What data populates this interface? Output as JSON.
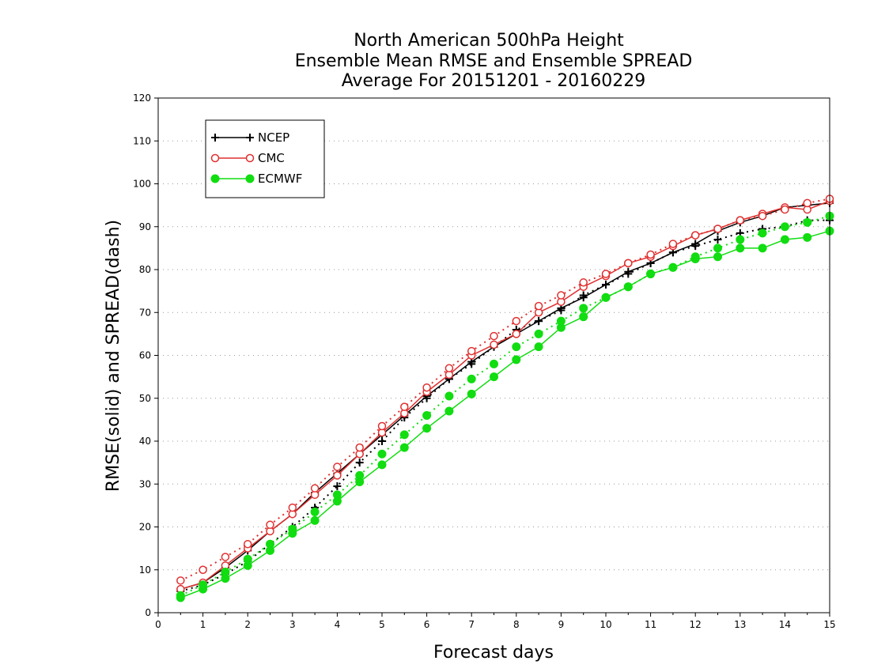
{
  "chart_data": {
    "type": "line",
    "title_lines": [
      "North American 500hPa Height",
      "Ensemble Mean RMSE and Ensemble SPREAD",
      "Average For 20151201 - 20160229"
    ],
    "xlabel": "Forecast days",
    "ylabel": "RMSE(solid) and SPREAD(dash)",
    "xlim": [
      0,
      15
    ],
    "ylim": [
      0,
      120
    ],
    "xticks": [
      0,
      1,
      2,
      3,
      4,
      5,
      6,
      7,
      8,
      9,
      10,
      11,
      12,
      13,
      14,
      15
    ],
    "yticks": [
      0,
      10,
      20,
      30,
      40,
      50,
      60,
      70,
      80,
      90,
      100,
      110,
      120
    ],
    "grid": "horizontal dotted",
    "legend_position": "top-left",
    "x": [
      0.5,
      1,
      1.5,
      2,
      2.5,
      3,
      3.5,
      4,
      4.5,
      5,
      5.5,
      6,
      6.5,
      7,
      7.5,
      8,
      8.5,
      9,
      9.5,
      10,
      10.5,
      11,
      11.5,
      12,
      12.5,
      13,
      13.5,
      14,
      14.5,
      15
    ],
    "series": [
      {
        "name": "NCEP",
        "measure": "RMSE",
        "style": "solid",
        "marker": "plus",
        "color": "#000000",
        "values": [
          5.5,
          7.0,
          10.5,
          14.5,
          19.0,
          23.0,
          28.0,
          32.5,
          37.0,
          41.5,
          46.0,
          50.5,
          54.5,
          58.5,
          62.0,
          65.0,
          68.0,
          71.0,
          73.5,
          76.5,
          79.5,
          81.5,
          84.0,
          86.0,
          89.0,
          91.0,
          92.5,
          94.5,
          95.0,
          95.5
        ]
      },
      {
        "name": "NCEP",
        "measure": "SPREAD",
        "style": "dash",
        "marker": "plus",
        "color": "#000000",
        "values": [
          5.0,
          6.5,
          9.0,
          12.0,
          16.0,
          20.0,
          24.5,
          29.5,
          35.0,
          40.0,
          45.5,
          50.0,
          54.5,
          58.0,
          62.0,
          66.0,
          68.0,
          70.5,
          74.0,
          76.5,
          79.0,
          81.5,
          84.0,
          85.5,
          87.0,
          88.5,
          89.5,
          90.0,
          91.5,
          91.5
        ]
      },
      {
        "name": "CMC",
        "measure": "RMSE",
        "style": "solid",
        "marker": "open-circle",
        "color": "#e03030",
        "values": [
          5.5,
          7.0,
          11.0,
          15.0,
          19.0,
          23.0,
          27.5,
          32.0,
          37.0,
          42.0,
          46.5,
          51.5,
          55.5,
          60.0,
          62.5,
          65.0,
          70.0,
          72.5,
          76.0,
          78.5,
          81.5,
          83.0,
          85.5,
          88.0,
          89.5,
          91.5,
          93.0,
          94.5,
          94.0,
          96.0
        ]
      },
      {
        "name": "CMC",
        "measure": "SPREAD",
        "style": "dash",
        "marker": "open-circle",
        "color": "#e03030",
        "values": [
          7.5,
          10.0,
          13.0,
          16.0,
          20.5,
          24.5,
          29.0,
          34.0,
          38.5,
          43.5,
          48.0,
          52.5,
          57.0,
          61.0,
          64.5,
          68.0,
          71.5,
          74.0,
          77.0,
          79.0,
          81.5,
          83.5,
          86.0,
          88.0,
          89.5,
          91.5,
          92.5,
          94.0,
          95.5,
          96.5
        ]
      },
      {
        "name": "ECMWF",
        "measure": "RMSE",
        "style": "solid",
        "marker": "filled-circle",
        "color": "#11dd11",
        "values": [
          3.5,
          5.5,
          8.0,
          11.0,
          14.5,
          18.5,
          21.5,
          26.0,
          30.5,
          34.5,
          38.5,
          43.0,
          47.0,
          51.0,
          55.0,
          59.0,
          62.0,
          66.5,
          69.0,
          73.5,
          76.0,
          79.0,
          80.5,
          82.5,
          83.0,
          85.0,
          85.0,
          87.0,
          87.5,
          89.0
        ]
      },
      {
        "name": "ECMWF",
        "measure": "SPREAD",
        "style": "dash",
        "marker": "filled-circle",
        "color": "#11dd11",
        "values": [
          4.0,
          6.5,
          9.5,
          12.5,
          16.0,
          19.5,
          23.5,
          27.5,
          32.0,
          37.0,
          41.5,
          46.0,
          50.5,
          54.5,
          58.0,
          62.0,
          65.0,
          68.0,
          71.0,
          73.5,
          76.0,
          79.0,
          80.5,
          83.0,
          85.0,
          87.0,
          88.5,
          90.0,
          91.0,
          92.5
        ]
      }
    ],
    "legend": [
      {
        "label": "NCEP",
        "marker": "plus",
        "color": "#000000"
      },
      {
        "label": "CMC",
        "marker": "open-circle",
        "color": "#e03030"
      },
      {
        "label": "ECMWF",
        "marker": "filled-circle",
        "color": "#11dd11"
      }
    ]
  }
}
